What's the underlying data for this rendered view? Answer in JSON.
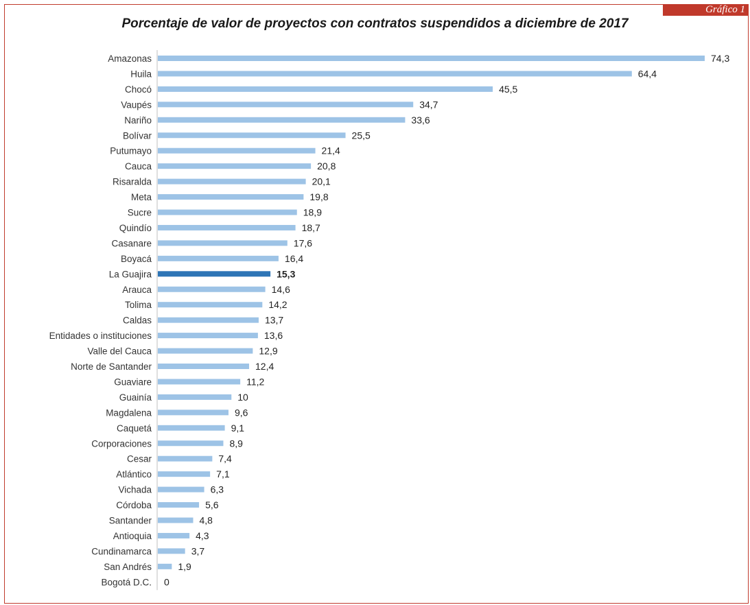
{
  "badge": "Gráfico 1",
  "chart_data": {
    "type": "bar",
    "orientation": "horizontal",
    "title": "Porcentaje de valor de proyectos con contratos suspendidos a diciembre de 2017",
    "xlabel": "",
    "ylabel": "",
    "xlim": [
      0,
      76
    ],
    "grid": false,
    "highlight": "La Guajira",
    "colors": {
      "bar": "#9dc3e6",
      "highlight": "#2e75b6",
      "badge": "#c0392b"
    },
    "categories": [
      "Amazonas",
      "Huila",
      "Chocó",
      "Vaupés",
      "Nariño",
      "Bolívar",
      "Putumayo",
      "Cauca",
      "Risaralda",
      "Meta",
      "Sucre",
      "Quindío",
      "Casanare",
      "Boyacá",
      "La Guajira",
      "Arauca",
      "Tolima",
      "Caldas",
      "Entidades o instituciones",
      "Valle del Cauca",
      "Norte de Santander",
      "Guaviare",
      "Guainía",
      "Magdalena",
      "Caquetá",
      "Corporaciones",
      "Cesar",
      "Atlántico",
      "Vichada",
      "Córdoba",
      "Santander",
      "Antioquia",
      "Cundinamarca",
      "San Andrés",
      "Bogotá D.C."
    ],
    "values": [
      74.3,
      64.4,
      45.5,
      34.7,
      33.6,
      25.5,
      21.4,
      20.8,
      20.1,
      19.8,
      18.9,
      18.7,
      17.6,
      16.4,
      15.3,
      14.6,
      14.2,
      13.7,
      13.6,
      12.9,
      12.4,
      11.2,
      10,
      9.6,
      9.1,
      8.9,
      7.4,
      7.1,
      6.3,
      5.6,
      4.8,
      4.3,
      3.7,
      1.9,
      0
    ],
    "value_labels": [
      "74,3",
      "64,4",
      "45,5",
      "34,7",
      "33,6",
      "25,5",
      "21,4",
      "20,8",
      "20,1",
      "19,8",
      "18,9",
      "18,7",
      "17,6",
      "16,4",
      "15,3",
      "14,6",
      "14,2",
      "13,7",
      "13,6",
      "12,9",
      "12,4",
      "11,2",
      "10",
      "9,6",
      "9,1",
      "8,9",
      "7,4",
      "7,1",
      "6,3",
      "5,6",
      "4,8",
      "4,3",
      "3,7",
      "1,9",
      "0"
    ]
  }
}
